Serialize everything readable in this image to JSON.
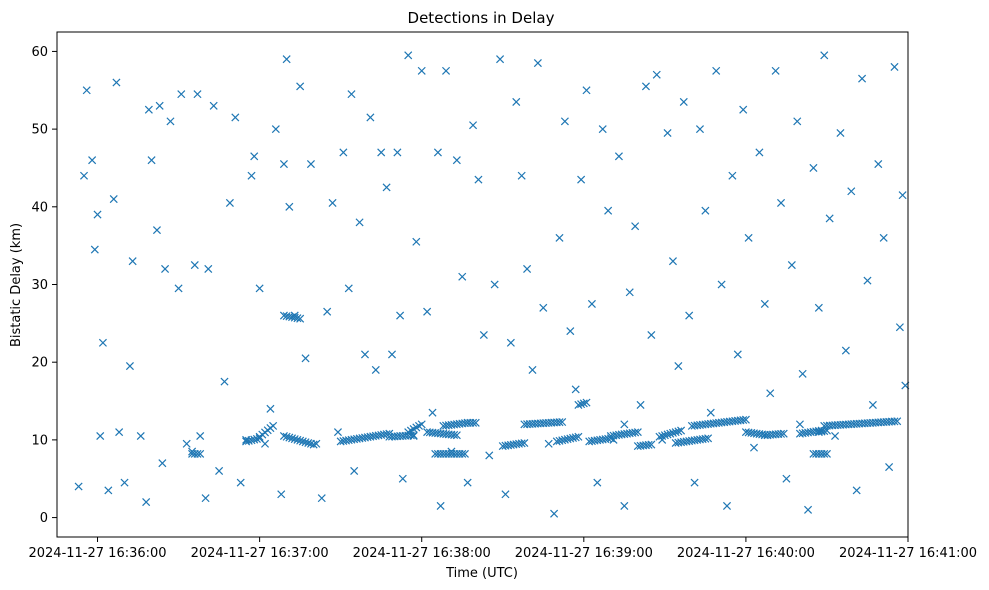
{
  "chart_data": {
    "type": "scatter",
    "title": "Detections in Delay",
    "xlabel": "Time (UTC)",
    "ylabel": "Bistatic Delay (km)",
    "x_axis_kind": "time",
    "xlim": [
      "2024-11-27 16:35:45",
      "2024-11-27 16:41:00"
    ],
    "ylim": [
      -2.5,
      62.5
    ],
    "x_ticks": [
      "2024-11-27 16:36:00",
      "2024-11-27 16:37:00",
      "2024-11-27 16:38:00",
      "2024-11-27 16:39:00",
      "2024-11-27 16:40:00",
      "2024-11-27 16:41:00"
    ],
    "y_ticks": [
      0,
      10,
      20,
      30,
      40,
      50,
      60
    ],
    "marker": "x",
    "color": "#1f77b4",
    "grid": false,
    "legend": "none",
    "points": [
      [
        "16:35:53",
        4.0
      ],
      [
        "16:35:55",
        44.0
      ],
      [
        "16:35:56",
        55.0
      ],
      [
        "16:35:58",
        46.0
      ],
      [
        "16:35:59",
        34.5
      ],
      [
        "16:36:00",
        39.0
      ],
      [
        "16:36:01",
        10.5
      ],
      [
        "16:36:02",
        22.5
      ],
      [
        "16:36:04",
        3.5
      ],
      [
        "16:36:06",
        41.0
      ],
      [
        "16:36:07",
        56.0
      ],
      [
        "16:36:08",
        11.0
      ],
      [
        "16:36:10",
        4.5
      ],
      [
        "16:36:12",
        19.5
      ],
      [
        "16:36:13",
        33.0
      ],
      [
        "16:36:16",
        10.5
      ],
      [
        "16:36:18",
        2.0
      ],
      [
        "16:36:19",
        52.5
      ],
      [
        "16:36:20",
        46.0
      ],
      [
        "16:36:22",
        37.0
      ],
      [
        "16:36:23",
        53.0
      ],
      [
        "16:36:24",
        7.0
      ],
      [
        "16:36:25",
        32.0
      ],
      [
        "16:36:27",
        51.0
      ],
      [
        "16:36:30",
        29.5
      ],
      [
        "16:36:31",
        54.5
      ],
      [
        "16:36:33",
        9.5
      ],
      [
        "16:36:35",
        8.5
      ],
      [
        "16:36:36",
        32.5
      ],
      [
        "16:36:37",
        54.5
      ],
      [
        "16:36:38",
        10.5
      ],
      [
        "16:36:40",
        2.5
      ],
      [
        "16:36:41",
        32.0
      ],
      [
        "16:36:43",
        53.0
      ],
      [
        "16:36:45",
        6.0
      ],
      [
        "16:36:47",
        17.5
      ],
      [
        "16:36:49",
        40.5
      ],
      [
        "16:36:51",
        51.5
      ],
      [
        "16:36:53",
        4.5
      ],
      [
        "16:36:55",
        10.0
      ],
      [
        "16:36:57",
        44.0
      ],
      [
        "16:36:58",
        46.5
      ],
      [
        "16:37:00",
        29.5
      ],
      [
        "16:37:02",
        9.5
      ],
      [
        "16:37:04",
        14.0
      ],
      [
        "16:37:06",
        50.0
      ],
      [
        "16:37:08",
        3.0
      ],
      [
        "16:37:09",
        45.5
      ],
      [
        "16:37:10",
        59.0
      ],
      [
        "16:37:11",
        40.0
      ],
      [
        "16:37:13",
        26.0
      ],
      [
        "16:37:15",
        55.5
      ],
      [
        "16:37:17",
        20.5
      ],
      [
        "16:37:19",
        45.5
      ],
      [
        "16:37:21",
        9.5
      ],
      [
        "16:37:23",
        2.5
      ],
      [
        "16:37:25",
        26.5
      ],
      [
        "16:37:27",
        40.5
      ],
      [
        "16:37:29",
        11.0
      ],
      [
        "16:37:31",
        47.0
      ],
      [
        "16:37:33",
        29.5
      ],
      [
        "16:37:34",
        54.5
      ],
      [
        "16:37:35",
        6.0
      ],
      [
        "16:37:37",
        38.0
      ],
      [
        "16:37:39",
        21.0
      ],
      [
        "16:37:41",
        51.5
      ],
      [
        "16:37:43",
        19.0
      ],
      [
        "16:37:45",
        47.0
      ],
      [
        "16:37:47",
        42.5
      ],
      [
        "16:37:49",
        21.0
      ],
      [
        "16:37:51",
        47.0
      ],
      [
        "16:37:52",
        26.0
      ],
      [
        "16:37:53",
        5.0
      ],
      [
        "16:37:55",
        59.5
      ],
      [
        "16:37:57",
        10.5
      ],
      [
        "16:37:58",
        35.5
      ],
      [
        "16:38:00",
        57.5
      ],
      [
        "16:38:02",
        26.5
      ],
      [
        "16:38:04",
        13.5
      ],
      [
        "16:38:06",
        47.0
      ],
      [
        "16:38:07",
        1.5
      ],
      [
        "16:38:09",
        57.5
      ],
      [
        "16:38:11",
        8.5
      ],
      [
        "16:38:13",
        46.0
      ],
      [
        "16:38:15",
        31.0
      ],
      [
        "16:38:17",
        4.5
      ],
      [
        "16:38:19",
        50.5
      ],
      [
        "16:38:21",
        43.5
      ],
      [
        "16:38:23",
        23.5
      ],
      [
        "16:38:25",
        8.0
      ],
      [
        "16:38:27",
        30.0
      ],
      [
        "16:38:29",
        59.0
      ],
      [
        "16:38:31",
        3.0
      ],
      [
        "16:38:33",
        22.5
      ],
      [
        "16:38:35",
        53.5
      ],
      [
        "16:38:37",
        44.0
      ],
      [
        "16:38:39",
        32.0
      ],
      [
        "16:38:41",
        19.0
      ],
      [
        "16:38:43",
        58.5
      ],
      [
        "16:38:45",
        27.0
      ],
      [
        "16:38:47",
        9.5
      ],
      [
        "16:38:49",
        0.5
      ],
      [
        "16:38:51",
        36.0
      ],
      [
        "16:38:53",
        51.0
      ],
      [
        "16:38:55",
        24.0
      ],
      [
        "16:38:57",
        16.5
      ],
      [
        "16:38:59",
        43.5
      ],
      [
        "16:39:01",
        55.0
      ],
      [
        "16:39:03",
        27.5
      ],
      [
        "16:39:05",
        4.5
      ],
      [
        "16:39:07",
        50.0
      ],
      [
        "16:39:09",
        39.5
      ],
      [
        "16:39:11",
        10.0
      ],
      [
        "16:39:13",
        46.5
      ],
      [
        "16:39:15",
        1.5
      ],
      [
        "16:39:17",
        29.0
      ],
      [
        "16:39:19",
        37.5
      ],
      [
        "16:39:21",
        14.5
      ],
      [
        "16:39:23",
        55.5
      ],
      [
        "16:39:25",
        23.5
      ],
      [
        "16:39:27",
        57.0
      ],
      [
        "16:39:29",
        10.0
      ],
      [
        "16:39:31",
        49.5
      ],
      [
        "16:39:33",
        33.0
      ],
      [
        "16:39:35",
        19.5
      ],
      [
        "16:39:37",
        53.5
      ],
      [
        "16:39:39",
        26.0
      ],
      [
        "16:39:41",
        4.5
      ],
      [
        "16:39:43",
        50.0
      ],
      [
        "16:39:45",
        39.5
      ],
      [
        "16:39:47",
        13.5
      ],
      [
        "16:39:49",
        57.5
      ],
      [
        "16:39:51",
        30.0
      ],
      [
        "16:39:53",
        1.5
      ],
      [
        "16:39:55",
        44.0
      ],
      [
        "16:39:57",
        21.0
      ],
      [
        "16:39:59",
        52.5
      ],
      [
        "16:40:01",
        36.0
      ],
      [
        "16:40:03",
        9.0
      ],
      [
        "16:40:05",
        47.0
      ],
      [
        "16:40:07",
        27.5
      ],
      [
        "16:40:09",
        16.0
      ],
      [
        "16:40:11",
        57.5
      ],
      [
        "16:40:13",
        40.5
      ],
      [
        "16:40:15",
        5.0
      ],
      [
        "16:40:17",
        32.5
      ],
      [
        "16:40:19",
        51.0
      ],
      [
        "16:40:21",
        18.5
      ],
      [
        "16:40:23",
        1.0
      ],
      [
        "16:40:25",
        45.0
      ],
      [
        "16:40:27",
        27.0
      ],
      [
        "16:40:29",
        59.5
      ],
      [
        "16:40:31",
        38.5
      ],
      [
        "16:40:33",
        10.5
      ],
      [
        "16:40:35",
        49.5
      ],
      [
        "16:40:37",
        21.5
      ],
      [
        "16:40:39",
        42.0
      ],
      [
        "16:40:41",
        3.5
      ],
      [
        "16:40:43",
        56.5
      ],
      [
        "16:40:45",
        30.5
      ],
      [
        "16:40:47",
        14.5
      ],
      [
        "16:40:49",
        45.5
      ],
      [
        "16:40:51",
        36.0
      ],
      [
        "16:40:53",
        6.5
      ],
      [
        "16:40:55",
        58.0
      ],
      [
        "16:40:57",
        24.5
      ],
      [
        "16:40:58",
        41.5
      ],
      [
        "16:40:59",
        17.0
      ],
      [
        "16:40:20",
        12.0
      ],
      [
        "16:39:15",
        12.0
      ]
    ],
    "tracks": [
      {
        "from": "16:36:35",
        "to": "16:36:38",
        "y0": 8.2,
        "y1": 8.2
      },
      {
        "from": "16:36:55",
        "to": "16:37:00",
        "y0": 9.8,
        "y1": 10.2
      },
      {
        "from": "16:37:00",
        "to": "16:37:05",
        "y0": 10.4,
        "y1": 11.8
      },
      {
        "from": "16:37:09",
        "to": "16:37:15",
        "y0": 26.0,
        "y1": 25.6
      },
      {
        "from": "16:37:09",
        "to": "16:37:20",
        "y0": 10.5,
        "y1": 9.4
      },
      {
        "from": "16:37:30",
        "to": "16:37:48",
        "y0": 9.8,
        "y1": 10.8
      },
      {
        "from": "16:37:48",
        "to": "16:37:57",
        "y0": 10.4,
        "y1": 10.6
      },
      {
        "from": "16:37:55",
        "to": "16:38:00",
        "y0": 11.0,
        "y1": 12.0
      },
      {
        "from": "16:38:02",
        "to": "16:38:13",
        "y0": 11.0,
        "y1": 10.6
      },
      {
        "from": "16:38:05",
        "to": "16:38:16",
        "y0": 8.2,
        "y1": 8.2
      },
      {
        "from": "16:38:08",
        "to": "16:38:17",
        "y0": 11.8,
        "y1": 12.2
      },
      {
        "from": "16:38:17",
        "to": "16:38:20",
        "y0": 12.2,
        "y1": 12.2
      },
      {
        "from": "16:38:30",
        "to": "16:38:38",
        "y0": 9.2,
        "y1": 9.6
      },
      {
        "from": "16:38:38",
        "to": "16:38:52",
        "y0": 12.0,
        "y1": 12.3
      },
      {
        "from": "16:38:50",
        "to": "16:38:58",
        "y0": 9.8,
        "y1": 10.4
      },
      {
        "from": "16:38:58",
        "to": "16:39:01",
        "y0": 14.5,
        "y1": 14.8
      },
      {
        "from": "16:39:02",
        "to": "16:39:10",
        "y0": 9.8,
        "y1": 10.2
      },
      {
        "from": "16:39:10",
        "to": "16:39:20",
        "y0": 10.5,
        "y1": 11.0
      },
      {
        "from": "16:39:20",
        "to": "16:39:25",
        "y0": 9.2,
        "y1": 9.4
      },
      {
        "from": "16:39:28",
        "to": "16:39:36",
        "y0": 10.4,
        "y1": 11.2
      },
      {
        "from": "16:39:34",
        "to": "16:39:46",
        "y0": 9.6,
        "y1": 10.2
      },
      {
        "from": "16:39:40",
        "to": "16:40:00",
        "y0": 11.8,
        "y1": 12.6
      },
      {
        "from": "16:40:00",
        "to": "16:40:08",
        "y0": 11.0,
        "y1": 10.6
      },
      {
        "from": "16:40:07",
        "to": "16:40:14",
        "y0": 10.6,
        "y1": 10.8
      },
      {
        "from": "16:40:20",
        "to": "16:40:28",
        "y0": 10.8,
        "y1": 11.2
      },
      {
        "from": "16:40:25",
        "to": "16:40:30",
        "y0": 8.2,
        "y1": 8.2
      },
      {
        "from": "16:40:27",
        "to": "16:40:30",
        "y0": 11.0,
        "y1": 11.2
      },
      {
        "from": "16:40:29",
        "to": "16:40:56",
        "y0": 11.8,
        "y1": 12.4
      }
    ]
  }
}
